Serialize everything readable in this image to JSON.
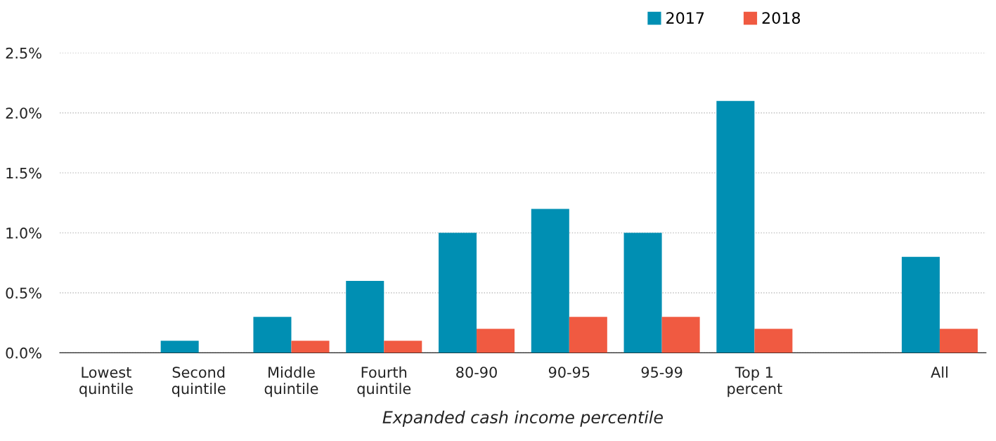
{
  "chart_data": {
    "type": "bar",
    "xlabel": "Expanded cash income percentile",
    "categories": [
      "Lowest\nquintile",
      "Second\nquintile",
      "Middle\nquintile",
      "Fourth\nquintile",
      "80-90",
      "90-95",
      "95-99",
      "Top 1\npercent",
      null,
      "All"
    ],
    "series": [
      {
        "name": "2017",
        "color": "#008fb3",
        "values": [
          0,
          0.1,
          0.3,
          0.6,
          1.0,
          1.2,
          1.0,
          2.1,
          null,
          0.8
        ]
      },
      {
        "name": "2018",
        "color": "#f05a41",
        "values": [
          0,
          0,
          0.1,
          0.1,
          0.2,
          0.3,
          0.3,
          0.2,
          null,
          0.2
        ]
      }
    ],
    "ylim": [
      0,
      2.5
    ],
    "yticks": [
      {
        "value": 0,
        "label": "0.0%"
      },
      {
        "value": 0.5,
        "label": "0.5%"
      },
      {
        "value": 1.0,
        "label": "1.0%"
      },
      {
        "value": 1.5,
        "label": "1.5%"
      },
      {
        "value": 2.0,
        "label": "2.0%"
      },
      {
        "value": 2.5,
        "label": "2.5%"
      }
    ],
    "grid": "y",
    "legend": "top right"
  }
}
